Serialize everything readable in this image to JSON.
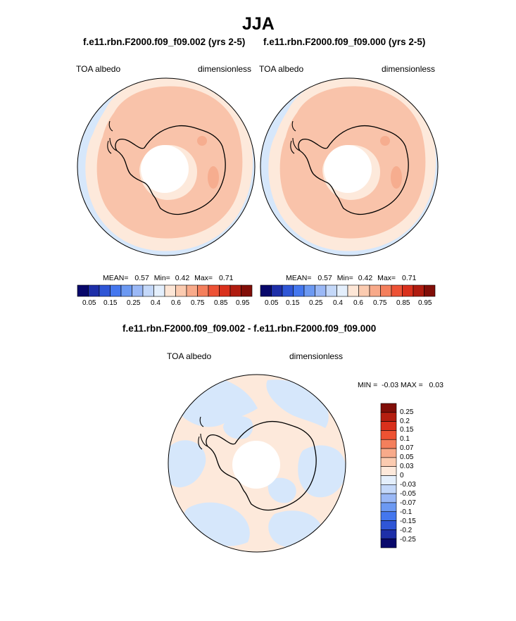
{
  "figure": {
    "title": "JJA"
  },
  "panels": [
    {
      "case": "f.e11.rbn.F2000.f09_f09.002 (yrs 2-5)",
      "variable": "TOA albedo",
      "units": "dimensionless",
      "mean_label": "MEAN=",
      "mean_value": "0.57",
      "min_label": "Min=",
      "min_value": "0.42",
      "max_label": "Max=",
      "max_value": "0.71"
    },
    {
      "case": "f.e11.rbn.F2000.f09_f09.000 (yrs 2-5)",
      "variable": "TOA albedo",
      "units": "dimensionless",
      "mean_label": "MEAN=",
      "mean_value": "0.57",
      "min_label": "Min=",
      "min_value": "0.42",
      "max_label": "Max=",
      "max_value": "0.71"
    }
  ],
  "diff_panel": {
    "title": "f.e11.rbn.F2000.f09_f09.002 - f.e11.rbn.F2000.f09_f09.000",
    "variable": "TOA albedo",
    "units": "dimensionless",
    "minmax_label": "MIN =  -0.03 MAX =   0.03"
  },
  "colorbar_main": {
    "ticks": [
      "0.05",
      "0.15",
      "0.25",
      "0.4",
      "0.6",
      "0.75",
      "0.85",
      "0.95"
    ],
    "colors": [
      "#08086b",
      "#1e2fa8",
      "#2f56d6",
      "#4477ee",
      "#6c99f2",
      "#9ab8f6",
      "#c4d8f9",
      "#e4effc",
      "#fde6d6",
      "#fbcbb0",
      "#f8aa8a",
      "#f47f5c",
      "#ed5236",
      "#d9301c",
      "#b01c10",
      "#810e08"
    ]
  },
  "colorbar_diff": {
    "ticks": [
      "0.25",
      "0.2",
      "0.15",
      "0.1",
      "0.07",
      "0.05",
      "0.03",
      "0",
      "-0.03",
      "-0.05",
      "-0.07",
      "-0.1",
      "-0.15",
      "-0.2",
      "-0.25"
    ],
    "colors": [
      "#810e08",
      "#b51e10",
      "#d9301c",
      "#ee5232",
      "#f47f5c",
      "#f8aa8a",
      "#fbcbb0",
      "#fde9db",
      "#e4effc",
      "#c4d8f9",
      "#9ab8f6",
      "#6c99f2",
      "#4477ee",
      "#2f56d6",
      "#1e2fa8",
      "#08086b"
    ]
  },
  "map_colors": {
    "ocean": "#d6e7fb",
    "halo": "#fde9db",
    "ice": "#f9c3aa",
    "pole": "#ffffff",
    "diff_positive": "#fde9db",
    "diff_negative": "#d6e7fb"
  }
}
